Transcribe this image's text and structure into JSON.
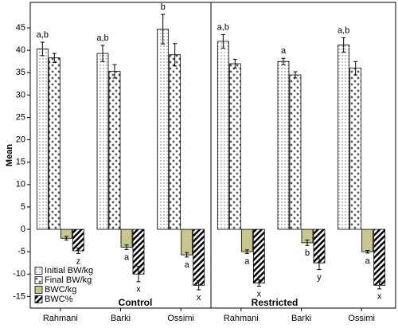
{
  "chart_data": [
    {
      "type": "bar",
      "title": "Control",
      "y_label": "Mean",
      "ylim": [
        -17.6,
        50.7
      ],
      "yticks": [
        -15,
        -10,
        -5,
        0,
        5,
        10,
        15,
        20,
        25,
        30,
        35,
        40,
        45
      ],
      "categories": [
        "Rahmani",
        "Barki",
        "Ossimi"
      ],
      "series": [
        {
          "name": "Initial BW/kg",
          "color": "#ffffff",
          "pattern": "dots",
          "values": [
            40.3,
            39.3,
            44.7
          ],
          "errors": [
            1.5,
            1.8,
            3.3
          ],
          "labels": [
            "a,b",
            "a,b",
            "b"
          ]
        },
        {
          "name": "Final BW/kg",
          "color": "#ffffff",
          "pattern": "crosses",
          "values": [
            38.3,
            35.3,
            39
          ],
          "errors": [
            1,
            1.5,
            2.5
          ]
        },
        {
          "name": "BWC/kg",
          "color": "#c6c68e",
          "pattern": "solid",
          "values": [
            -2,
            -4,
            -5.7
          ],
          "errors": [
            0.4,
            0.5,
            0.5
          ],
          "labels": [
            null,
            "a",
            "a"
          ]
        },
        {
          "name": "BWC%",
          "color": "#ffffff",
          "pattern": "hatch",
          "values": [
            -4.8,
            -10,
            -12.5
          ],
          "errors": [
            0.6,
            1.7,
            1
          ],
          "labels": [
            "z",
            "x",
            "x"
          ]
        }
      ]
    },
    {
      "type": "bar",
      "title": "Restricted",
      "ylim": [
        -17.6,
        50.7
      ],
      "categories": [
        "Rahmani",
        "Barki",
        "Ossimi"
      ],
      "series": [
        {
          "name": "Initial BW/kg",
          "color": "#ffffff",
          "pattern": "dots",
          "values": [
            42,
            37.5,
            41.2
          ],
          "errors": [
            1.5,
            0.7,
            1.6
          ],
          "labels": [
            "a,b",
            "a",
            "a,b"
          ]
        },
        {
          "name": "Final BW/kg",
          "color": "#ffffff",
          "pattern": "crosses",
          "values": [
            37,
            34.5,
            36
          ],
          "errors": [
            1,
            0.7,
            1.5
          ]
        },
        {
          "name": "BWC/kg",
          "color": "#c6c68e",
          "pattern": "solid",
          "values": [
            -5,
            -3,
            -5
          ],
          "errors": [
            0.4,
            0.6,
            0.3
          ],
          "labels": [
            "a",
            "b",
            "a"
          ]
        },
        {
          "name": "BWC%",
          "color": "#ffffff",
          "pattern": "hatch",
          "values": [
            -12,
            -7.5,
            -12.5
          ],
          "errors": [
            0.7,
            1.5,
            0.8
          ],
          "labels": [
            "x",
            "y",
            "x"
          ]
        }
      ]
    }
  ]
}
